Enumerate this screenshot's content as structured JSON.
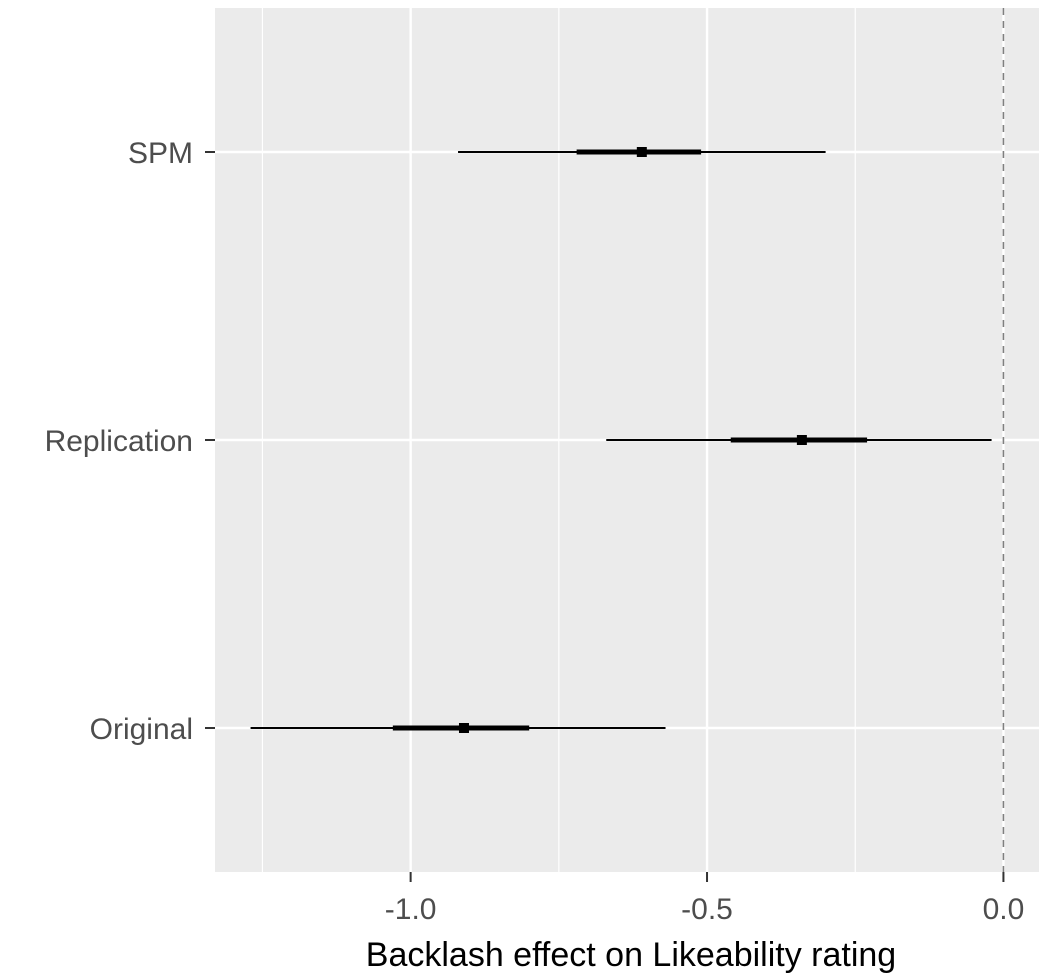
{
  "chart_data": {
    "type": "forest",
    "title": "",
    "xlabel": "Backlash effect on Likeability rating",
    "ylabel": "",
    "xlim": [
      -1.33,
      0.06
    ],
    "x_ticks": [
      -1.0,
      -0.5,
      0.0
    ],
    "x_tick_labels": [
      "-1.0",
      "-0.5",
      "0.0"
    ],
    "x_minor_ticks": [
      -1.25,
      -0.75,
      -0.25
    ],
    "reference_line": 0.0,
    "grid": true,
    "legend": "none",
    "categories": [
      "SPM",
      "Replication",
      "Original"
    ],
    "estimates": [
      {
        "label": "SPM",
        "point": -0.61,
        "inner": [
          -0.72,
          -0.51
        ],
        "outer": [
          -0.92,
          -0.3
        ]
      },
      {
        "label": "Replication",
        "point": -0.34,
        "inner": [
          -0.46,
          -0.23
        ],
        "outer": [
          -0.67,
          -0.02
        ]
      },
      {
        "label": "Original",
        "point": -0.91,
        "inner": [
          -1.03,
          -0.8
        ],
        "outer": [
          -1.27,
          -0.57
        ]
      }
    ],
    "colors": {
      "panel": "#ebebeb",
      "grid": "#ffffff",
      "interval": "#000000",
      "reference_line": "#7f7f7f",
      "tick": "#333333"
    }
  }
}
